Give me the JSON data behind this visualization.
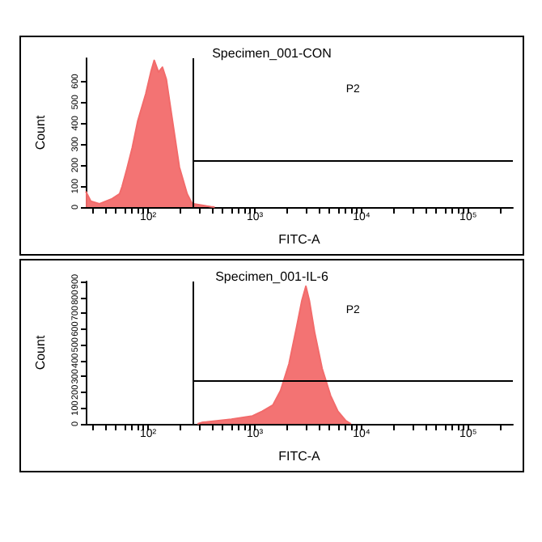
{
  "chart_data": [
    {
      "type": "area",
      "title": "Specimen_001-CON",
      "xlabel": "FITC-A",
      "ylabel": "Count",
      "log": "x",
      "color": "#f26b6b",
      "grid": false,
      "marker": "none",
      "x": [
        26,
        29,
        35,
        46,
        54,
        57,
        63,
        71,
        80,
        95,
        106,
        114,
        125,
        136,
        148,
        165,
        196,
        232,
        259,
        386,
        420
      ],
      "values": [
        75,
        28,
        16,
        40,
        63,
        98,
        179,
        284,
        412,
        540,
        644,
        700,
        644,
        667,
        609,
        447,
        191,
        63,
        16,
        2,
        0
      ],
      "xlim": [
        26,
        262144
      ],
      "xticks": [
        {
          "value": 30,
          "label": null
        },
        {
          "value": 40,
          "label": null
        },
        {
          "value": 50,
          "label": null
        },
        {
          "value": 60,
          "label": null
        },
        {
          "value": 70,
          "label": null
        },
        {
          "value": 80,
          "label": null
        },
        {
          "value": 90,
          "label": null
        },
        {
          "value": 100,
          "label": "10²"
        },
        {
          "value": 200,
          "label": null
        },
        {
          "value": 300,
          "label": null
        },
        {
          "value": 400,
          "label": null
        },
        {
          "value": 500,
          "label": null
        },
        {
          "value": 600,
          "label": null
        },
        {
          "value": 700,
          "label": null
        },
        {
          "value": 800,
          "label": null
        },
        {
          "value": 900,
          "label": null
        },
        {
          "value": 1000,
          "label": "10³"
        },
        {
          "value": 2000,
          "label": null
        },
        {
          "value": 3000,
          "label": null
        },
        {
          "value": 4000,
          "label": null
        },
        {
          "value": 5000,
          "label": null
        },
        {
          "value": 6000,
          "label": null
        },
        {
          "value": 7000,
          "label": null
        },
        {
          "value": 8000,
          "label": null
        },
        {
          "value": 9000,
          "label": null
        },
        {
          "value": 10000,
          "label": "10⁴"
        },
        {
          "value": 20000,
          "label": null
        },
        {
          "value": 30000,
          "label": null
        },
        {
          "value": 40000,
          "label": null
        },
        {
          "value": 50000,
          "label": null
        },
        {
          "value": 60000,
          "label": null
        },
        {
          "value": 70000,
          "label": null
        },
        {
          "value": 80000,
          "label": null
        },
        {
          "value": 90000,
          "label": null
        },
        {
          "value": 100000,
          "label": "10⁵"
        },
        {
          "value": 200000,
          "label": null
        }
      ],
      "ylim": [
        0,
        710
      ],
      "yticks": [
        0,
        100,
        200,
        300,
        400,
        500,
        600
      ],
      "ref_lines": [
        {
          "axis": "x",
          "value": 263,
          "color": "#000000"
        },
        {
          "axis": "y",
          "value": 223,
          "label": "P2",
          "color": "#000000"
        }
      ]
    },
    {
      "type": "area",
      "title": "Specimen_001-IL-6",
      "xlabel": "FITC-A",
      "ylabel": "Count",
      "log": "x",
      "color": "#f26b6b",
      "grid": false,
      "marker": "none",
      "x": [
        290,
        325,
        603,
        950,
        1175,
        1480,
        1740,
        2090,
        2460,
        2760,
        3010,
        3240,
        3630,
        4270,
        5120,
        6000,
        7130,
        7960
      ],
      "values": [
        0,
        10,
        30,
        50,
        80,
        120,
        210,
        380,
        610,
        780,
        870,
        780,
        580,
        350,
        180,
        80,
        20,
        0
      ],
      "xlim": [
        26,
        262144
      ],
      "xticks": [
        {
          "value": 30,
          "label": null
        },
        {
          "value": 40,
          "label": null
        },
        {
          "value": 50,
          "label": null
        },
        {
          "value": 60,
          "label": null
        },
        {
          "value": 70,
          "label": null
        },
        {
          "value": 80,
          "label": null
        },
        {
          "value": 90,
          "label": null
        },
        {
          "value": 100,
          "label": "10²"
        },
        {
          "value": 200,
          "label": null
        },
        {
          "value": 300,
          "label": null
        },
        {
          "value": 400,
          "label": null
        },
        {
          "value": 500,
          "label": null
        },
        {
          "value": 600,
          "label": null
        },
        {
          "value": 700,
          "label": null
        },
        {
          "value": 800,
          "label": null
        },
        {
          "value": 900,
          "label": null
        },
        {
          "value": 1000,
          "label": "10³"
        },
        {
          "value": 2000,
          "label": null
        },
        {
          "value": 3000,
          "label": null
        },
        {
          "value": 4000,
          "label": null
        },
        {
          "value": 5000,
          "label": null
        },
        {
          "value": 6000,
          "label": null
        },
        {
          "value": 7000,
          "label": null
        },
        {
          "value": 8000,
          "label": null
        },
        {
          "value": 9000,
          "label": null
        },
        {
          "value": 10000,
          "label": "10⁴"
        },
        {
          "value": 20000,
          "label": null
        },
        {
          "value": 30000,
          "label": null
        },
        {
          "value": 40000,
          "label": null
        },
        {
          "value": 50000,
          "label": null
        },
        {
          "value": 60000,
          "label": null
        },
        {
          "value": 70000,
          "label": null
        },
        {
          "value": 80000,
          "label": null
        },
        {
          "value": 90000,
          "label": null
        },
        {
          "value": 100000,
          "label": "10⁵"
        },
        {
          "value": 200000,
          "label": null
        }
      ],
      "ylim": [
        0,
        900
      ],
      "yticks": [
        0,
        100,
        200,
        300,
        400,
        500,
        600,
        700,
        800,
        900
      ],
      "ref_lines": [
        {
          "axis": "x",
          "value": 263,
          "color": "#000000"
        },
        {
          "axis": "y",
          "value": 271,
          "label": "P2",
          "color": "#000000"
        }
      ]
    }
  ]
}
